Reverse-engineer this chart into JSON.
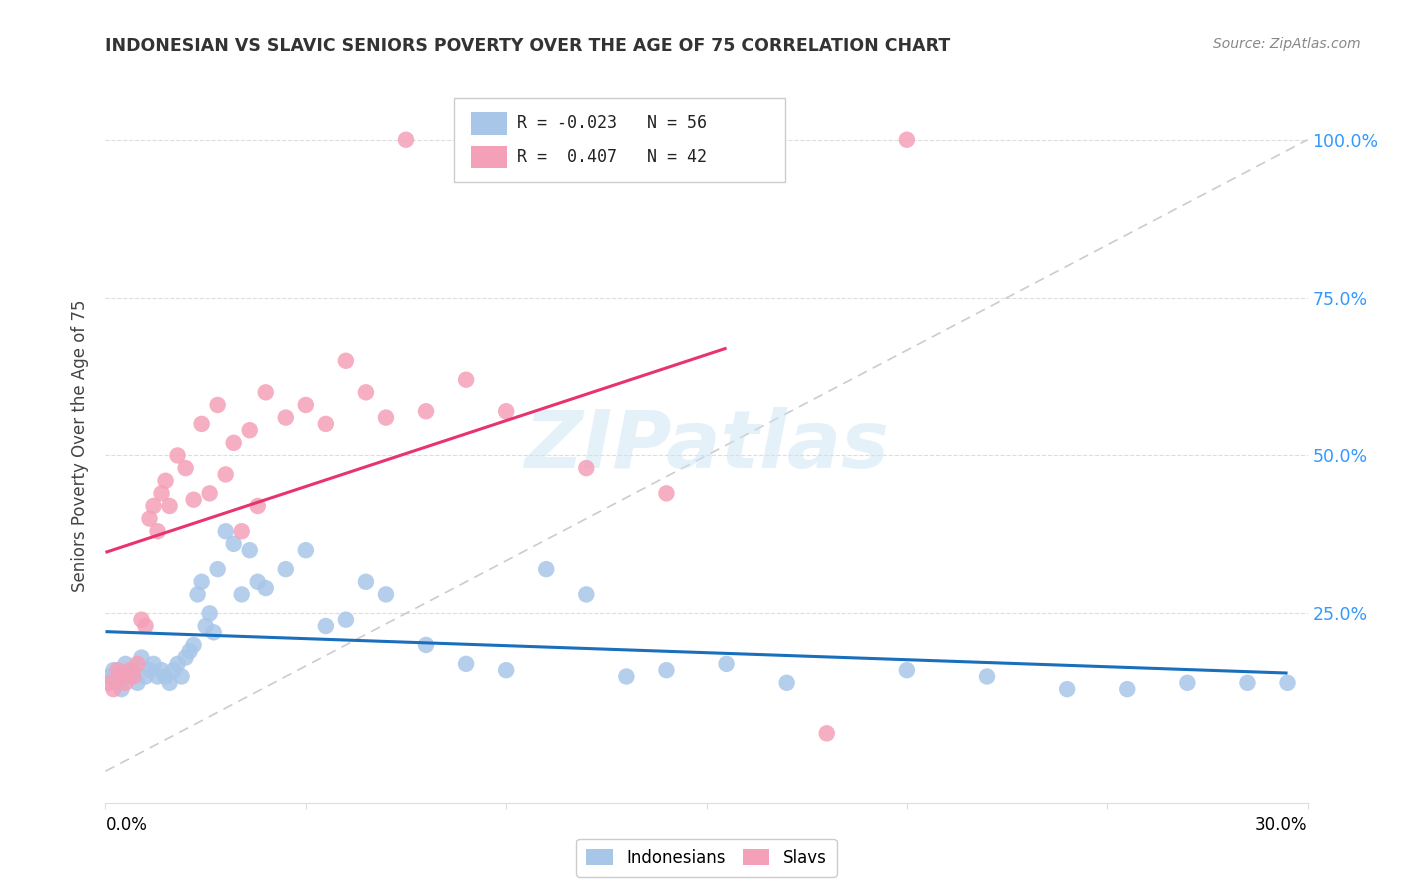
{
  "title": "INDONESIAN VS SLAVIC SENIORS POVERTY OVER THE AGE OF 75 CORRELATION CHART",
  "source": "Source: ZipAtlas.com",
  "ylabel": "Seniors Poverty Over the Age of 75",
  "xlim": [
    0.0,
    0.3
  ],
  "ylim": [
    -0.05,
    1.08
  ],
  "ytick_vals": [
    0.0,
    0.25,
    0.5,
    0.75,
    1.0
  ],
  "ytick_labels_right": [
    "",
    "25.0%",
    "50.0%",
    "75.0%",
    "100.0%"
  ],
  "indo_color": "#a8c6e8",
  "slav_color": "#f4a0b8",
  "indo_line_color": "#1a6fbd",
  "slav_line_color": "#e8336e",
  "diag_color": "#cccccc",
  "grid_color": "#dddddd",
  "indonesian_x": [
    0.001,
    0.002,
    0.003,
    0.004,
    0.005,
    0.006,
    0.007,
    0.008,
    0.009,
    0.01,
    0.011,
    0.012,
    0.013,
    0.014,
    0.015,
    0.016,
    0.017,
    0.018,
    0.019,
    0.02,
    0.021,
    0.022,
    0.023,
    0.024,
    0.025,
    0.026,
    0.027,
    0.028,
    0.03,
    0.032,
    0.034,
    0.036,
    0.038,
    0.04,
    0.045,
    0.05,
    0.055,
    0.06,
    0.065,
    0.07,
    0.08,
    0.09,
    0.1,
    0.11,
    0.12,
    0.13,
    0.14,
    0.155,
    0.17,
    0.2,
    0.22,
    0.24,
    0.255,
    0.27,
    0.285,
    0.295
  ],
  "indonesian_y": [
    0.15,
    0.16,
    0.14,
    0.13,
    0.17,
    0.15,
    0.16,
    0.14,
    0.18,
    0.15,
    0.16,
    0.17,
    0.15,
    0.16,
    0.15,
    0.14,
    0.16,
    0.17,
    0.15,
    0.18,
    0.19,
    0.2,
    0.28,
    0.3,
    0.23,
    0.25,
    0.22,
    0.32,
    0.38,
    0.36,
    0.28,
    0.35,
    0.3,
    0.29,
    0.32,
    0.35,
    0.23,
    0.24,
    0.3,
    0.28,
    0.2,
    0.17,
    0.16,
    0.32,
    0.28,
    0.15,
    0.16,
    0.17,
    0.14,
    0.16,
    0.15,
    0.13,
    0.13,
    0.14,
    0.14,
    0.14
  ],
  "slavic_x": [
    0.001,
    0.002,
    0.003,
    0.004,
    0.005,
    0.006,
    0.007,
    0.008,
    0.009,
    0.01,
    0.011,
    0.012,
    0.013,
    0.014,
    0.015,
    0.016,
    0.018,
    0.02,
    0.022,
    0.024,
    0.026,
    0.028,
    0.03,
    0.032,
    0.034,
    0.036,
    0.038,
    0.04,
    0.045,
    0.05,
    0.055,
    0.06,
    0.065,
    0.07,
    0.075,
    0.08,
    0.09,
    0.1,
    0.12,
    0.14,
    0.18,
    0.2
  ],
  "slavic_y": [
    0.14,
    0.13,
    0.16,
    0.15,
    0.14,
    0.16,
    0.15,
    0.17,
    0.24,
    0.23,
    0.4,
    0.42,
    0.38,
    0.44,
    0.46,
    0.42,
    0.5,
    0.48,
    0.43,
    0.55,
    0.44,
    0.58,
    0.47,
    0.52,
    0.38,
    0.54,
    0.42,
    0.6,
    0.56,
    0.58,
    0.55,
    0.65,
    0.6,
    0.56,
    1.0,
    0.57,
    0.62,
    0.57,
    0.48,
    0.44,
    0.06,
    1.0
  ],
  "indo_line_x0": 0.0,
  "indo_line_x1": 0.295,
  "slav_line_x0": 0.0,
  "slav_line_x1": 0.155,
  "watermark_text": "ZIPatlas"
}
